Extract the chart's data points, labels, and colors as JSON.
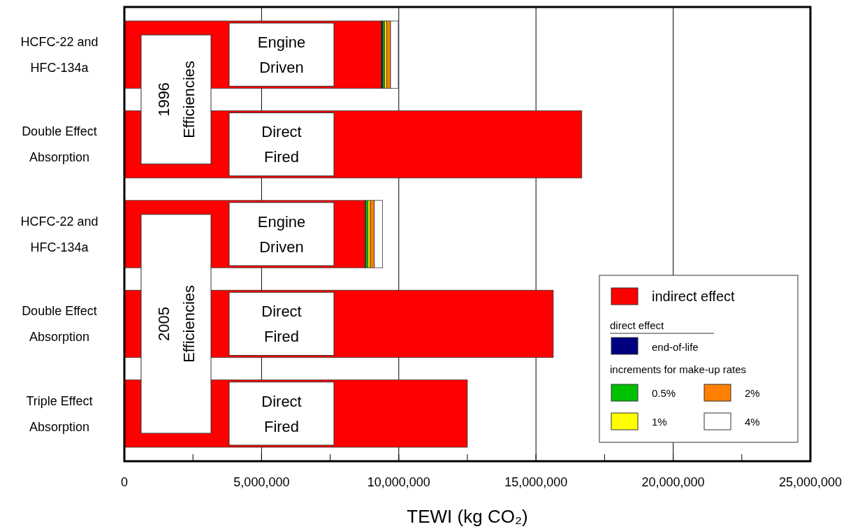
{
  "chart_data": {
    "type": "bar",
    "orientation": "horizontal",
    "stacked": true,
    "xlabel": "TEWI (kg CO₂)",
    "categories": [
      "HCFC-22 and\nHFC-134a",
      "Double Effect\nAbsorption",
      "HCFC-22 and\nHFC-134a",
      "Double Effect\nAbsorption",
      "Triple Effect\nAbsorption"
    ],
    "series": [
      {
        "name": "indirect effect",
        "color": "#ff0000",
        "values": [
          9370000,
          16670000,
          8770000,
          15630000,
          12500000
        ]
      },
      {
        "name": "end-of-life",
        "color": "#000080",
        "values": [
          50000,
          null,
          30000,
          null,
          null
        ]
      },
      {
        "name": "0.5%",
        "color": "#00c000",
        "values": [
          70000,
          null,
          80000,
          null,
          null
        ]
      },
      {
        "name": "1%",
        "color": "#ffff00",
        "values": [
          70000,
          null,
          80000,
          null,
          null
        ]
      },
      {
        "name": "2%",
        "color": "#ff8000",
        "values": [
          140000,
          null,
          150000,
          null,
          null
        ]
      },
      {
        "name": "4%",
        "color": "#ffffff",
        "values": [
          280000,
          null,
          300000,
          null,
          null
        ]
      }
    ],
    "xlim": [
      0,
      25000000
    ],
    "xticks": [
      0,
      {
        "value": 2500000,
        "label": null
      },
      {
        "value": 5000000,
        "label": "5,000,000"
      },
      {
        "value": 7500000,
        "label": null
      },
      {
        "value": 10000000,
        "label": "10,000,000"
      },
      {
        "value": 12500000,
        "label": null
      },
      {
        "value": 15000000,
        "label": "15,000,000"
      },
      {
        "value": 17500000,
        "label": null
      },
      {
        "value": 20000000,
        "label": "20,000,000"
      },
      {
        "value": 22500000,
        "label": null
      },
      {
        "value": 25000000,
        "label": "25,000,000"
      }
    ],
    "grid": "x",
    "legend": "bottom right",
    "annotations": [
      "1996\nEfficiencies",
      "2005\nEfficiencies",
      "Engine\nDriven",
      "Direct\nFired",
      "Engine\nDriven",
      "Direct\nFired",
      "Direct\nFired",
      "direct effect",
      "increments for make-up rates"
    ]
  }
}
